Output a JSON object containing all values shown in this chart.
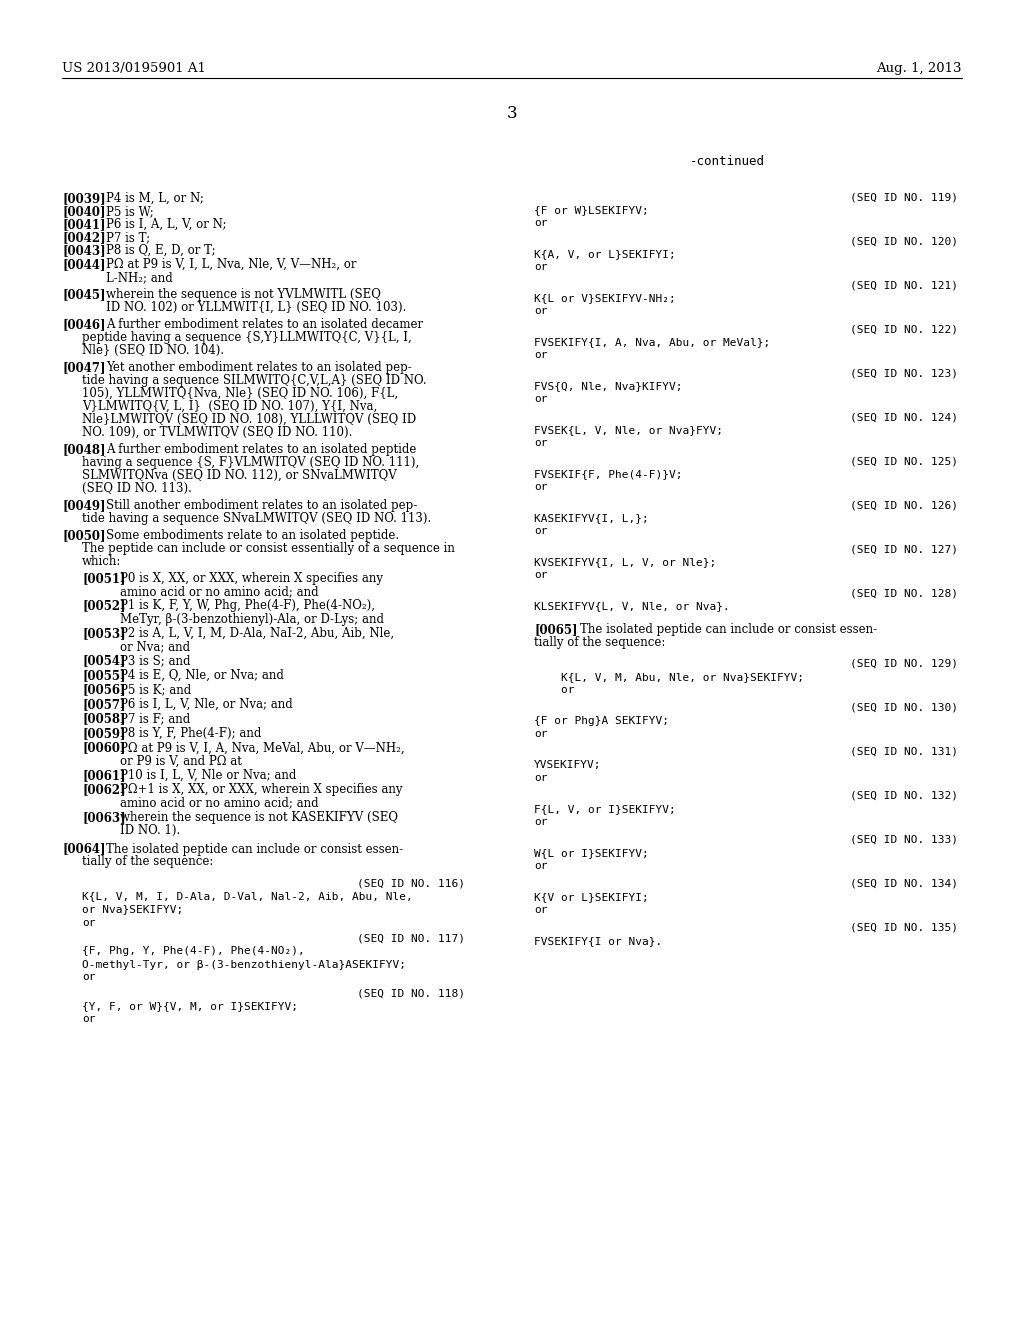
{
  "bg_color": "#e8e8e8",
  "header_left": "US 2013/0195901 A1",
  "header_right": "Aug. 1, 2013",
  "page_number": "3",
  "continued_label": "-continued"
}
